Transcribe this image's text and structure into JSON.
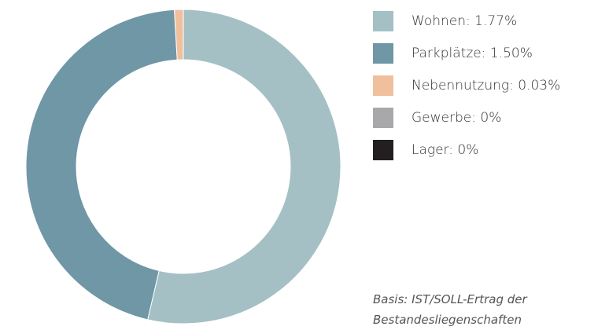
{
  "chart_data": {
    "type": "donut",
    "categories": [
      "Wohnen",
      "Parkplätze",
      "Nebennutzung",
      "Gewerbe",
      "Lager"
    ],
    "values": [
      1.77,
      1.5,
      0.03,
      0,
      0
    ],
    "value_labels": [
      "1.77%",
      "1.50%",
      "0.03%",
      "0%",
      "0%"
    ],
    "colors": [
      "#a4c0c4",
      "#6f97a6",
      "#f0c09d",
      "#a8a8ab",
      "#231f20"
    ],
    "note": [
      "Basis: IST/SOLL-Ertrag der",
      "Bestandesliegenschaften"
    ]
  }
}
